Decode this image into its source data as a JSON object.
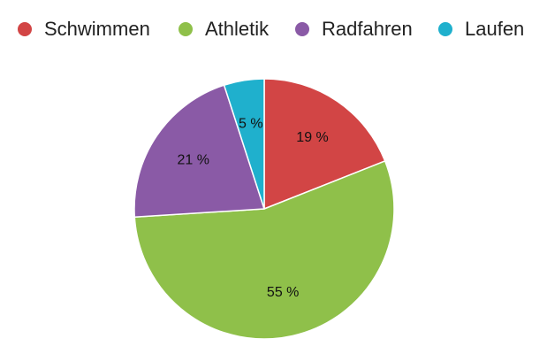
{
  "chart_data": {
    "type": "pie",
    "categories": [
      "Schwimmen",
      "Athletik",
      "Radfahren",
      "Laufen"
    ],
    "values": [
      19,
      55,
      21,
      5
    ],
    "value_labels": [
      "19 %",
      "55 %",
      "21 %",
      "5 %"
    ],
    "colors": [
      "#d24545",
      "#8fc04a",
      "#8a5aa6",
      "#1fb0cd"
    ],
    "legend_position": "top",
    "start_angle_deg": 0,
    "direction": "clockwise"
  }
}
